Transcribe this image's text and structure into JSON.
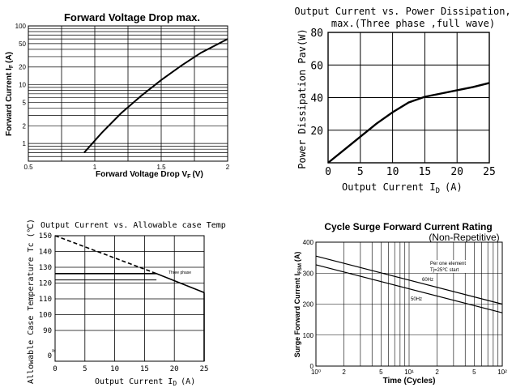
{
  "chart_data": [
    {
      "type": "line",
      "title": "Forward Voltage Drop max.",
      "xlabel": "Forward Voltage Drop V",
      "xlabel_sub": "F",
      "xlabel_unit": "(V)",
      "ylabel": "Forward Current I",
      "ylabel_sub": "F",
      "ylabel_unit": "(A)",
      "yscale": "log",
      "xlim": [
        0.5,
        2
      ],
      "ylim": [
        0.5,
        100
      ],
      "x_ticks": [
        "0.5",
        "1",
        "1.5",
        "2"
      ],
      "y_ticks": [
        "100",
        "50",
        "20",
        "10",
        "5",
        "2",
        "1"
      ],
      "grid": true,
      "series": [
        {
          "x": [
            0.92,
            1.05,
            1.2,
            1.35,
            1.5,
            1.65,
            1.8,
            2.0
          ],
          "y": [
            0.7,
            1.5,
            3.3,
            6.5,
            12,
            21,
            35,
            60
          ]
        }
      ]
    },
    {
      "type": "line",
      "title": "Output Current vs. Power Dissipation,",
      "subtitle": "max.(Three phase ,full wave)",
      "xlabel": "Output Current I",
      "xlabel_sub": "D",
      "xlabel_unit": "(A)",
      "ylabel": "Power Dissipation Pav(W)",
      "xlim": [
        0,
        25
      ],
      "ylim": [
        0,
        80
      ],
      "x_ticks": [
        "0",
        "5",
        "10",
        "15",
        "20",
        "25"
      ],
      "y_ticks": [
        "80",
        "60",
        "40",
        "20"
      ],
      "grid": true,
      "series": [
        {
          "x": [
            0,
            2.5,
            5,
            7.5,
            10,
            12.5,
            15,
            17.5,
            20,
            22.5,
            25
          ],
          "y": [
            0,
            8,
            16,
            24,
            31,
            37,
            40.5,
            42.5,
            44.5,
            46.5,
            49
          ]
        }
      ]
    },
    {
      "type": "line",
      "title": "Output Current vs. Allowable case Temp",
      "xlabel": "Output Current I",
      "xlabel_sub": "D",
      "xlabel_unit": "(A)",
      "ylabel": "Allowable Case Temperature Tc (℃)",
      "xlim": [
        0,
        25
      ],
      "x_ticks": [
        "0",
        "5",
        "10",
        "15",
        "20",
        "25"
      ],
      "y_ticks": [
        "150",
        "140",
        "130",
        "120",
        "110",
        "100",
        "90",
        "0"
      ],
      "annotation": "Three phase",
      "grid": true,
      "series": [
        {
          "style": "dashed",
          "x": [
            0,
            17
          ],
          "y": [
            150,
            126
          ]
        },
        {
          "style": "solid",
          "x": [
            0,
            17,
            25
          ],
          "y": [
            126,
            126,
            114
          ]
        }
      ],
      "reference_lines": {
        "y": [
          126,
          122
        ]
      }
    },
    {
      "type": "line",
      "title": "Cycle Surge Forward Current Rating",
      "subtitle": "(Non-Repetitive)",
      "xlabel": "Time (Cycles)",
      "ylabel": "Surge Forward Current I",
      "ylabel_sub": "FSM",
      "ylabel_unit": "(A)",
      "xscale": "log",
      "xlim": [
        1,
        100
      ],
      "ylim": [
        0,
        400
      ],
      "x_ticks": [
        "10⁰",
        "2",
        "5",
        "10¹",
        "2",
        "5",
        "10²"
      ],
      "y_ticks": [
        "400",
        "300",
        "200",
        "100",
        "0"
      ],
      "grid": true,
      "annotations": [
        "Per one element",
        "Tj=25℃  start"
      ],
      "series": [
        {
          "name": "60Hz",
          "x": [
            1,
            100
          ],
          "y": [
            355,
            200
          ]
        },
        {
          "name": "50Hz",
          "x": [
            1,
            100
          ],
          "y": [
            327,
            172
          ]
        }
      ]
    }
  ]
}
